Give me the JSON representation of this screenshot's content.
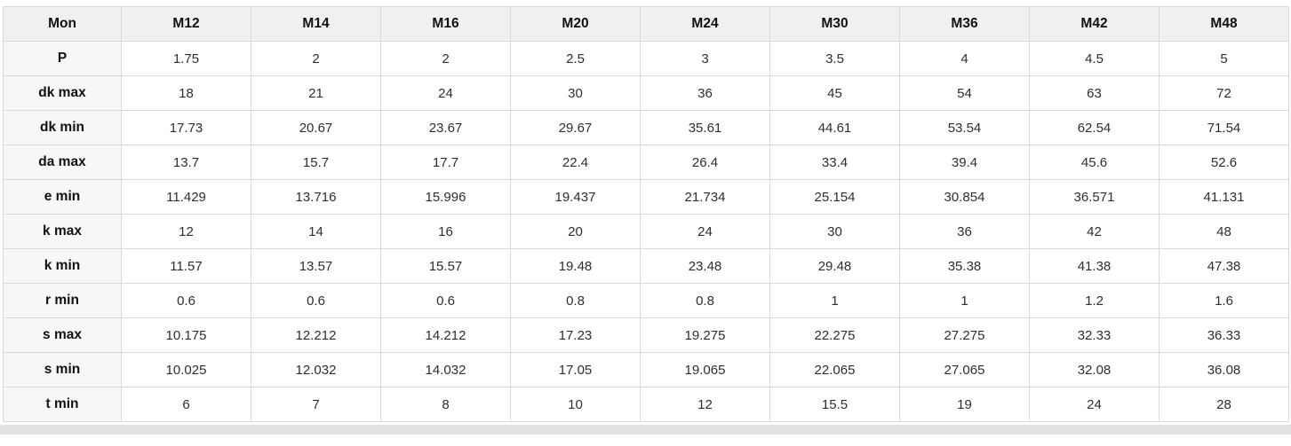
{
  "table": {
    "header": [
      "Mon",
      "M12",
      "M14",
      "M16",
      "M20",
      "M24",
      "M30",
      "M36",
      "M42",
      "M48"
    ],
    "rows": [
      {
        "label": "P",
        "values": [
          "1.75",
          "2",
          "2",
          "2.5",
          "3",
          "3.5",
          "4",
          "4.5",
          "5"
        ]
      },
      {
        "label": "dk max",
        "values": [
          "18",
          "21",
          "24",
          "30",
          "36",
          "45",
          "54",
          "63",
          "72"
        ]
      },
      {
        "label": "dk min",
        "values": [
          "17.73",
          "20.67",
          "23.67",
          "29.67",
          "35.61",
          "44.61",
          "53.54",
          "62.54",
          "71.54"
        ]
      },
      {
        "label": "da max",
        "values": [
          "13.7",
          "15.7",
          "17.7",
          "22.4",
          "26.4",
          "33.4",
          "39.4",
          "45.6",
          "52.6"
        ]
      },
      {
        "label": "e min",
        "values": [
          "11.429",
          "13.716",
          "15.996",
          "19.437",
          "21.734",
          "25.154",
          "30.854",
          "36.571",
          "41.131"
        ]
      },
      {
        "label": "k max",
        "values": [
          "12",
          "14",
          "16",
          "20",
          "24",
          "30",
          "36",
          "42",
          "48"
        ]
      },
      {
        "label": "k min",
        "values": [
          "11.57",
          "13.57",
          "15.57",
          "19.48",
          "23.48",
          "29.48",
          "35.38",
          "41.38",
          "47.38"
        ]
      },
      {
        "label": "r min",
        "values": [
          "0.6",
          "0.6",
          "0.6",
          "0.8",
          "0.8",
          "1",
          "1",
          "1.2",
          "1.6"
        ]
      },
      {
        "label": "s max",
        "values": [
          "10.175",
          "12.212",
          "14.212",
          "17.23",
          "19.275",
          "22.275",
          "27.275",
          "32.33",
          "36.33"
        ]
      },
      {
        "label": "s min",
        "values": [
          "10.025",
          "12.032",
          "14.032",
          "17.05",
          "19.065",
          "22.065",
          "27.065",
          "32.08",
          "36.08"
        ]
      },
      {
        "label": "t min",
        "values": [
          "6",
          "7",
          "8",
          "10",
          "12",
          "15.5",
          "19",
          "24",
          "28"
        ]
      }
    ]
  },
  "colors": {
    "header_bg": "#f0f0f0",
    "label_col_bg": "#f7f7f7",
    "cell_bg": "#ffffff",
    "border": "#dadada",
    "bottom_strip": "#e2e2e2",
    "text": "#111111"
  }
}
